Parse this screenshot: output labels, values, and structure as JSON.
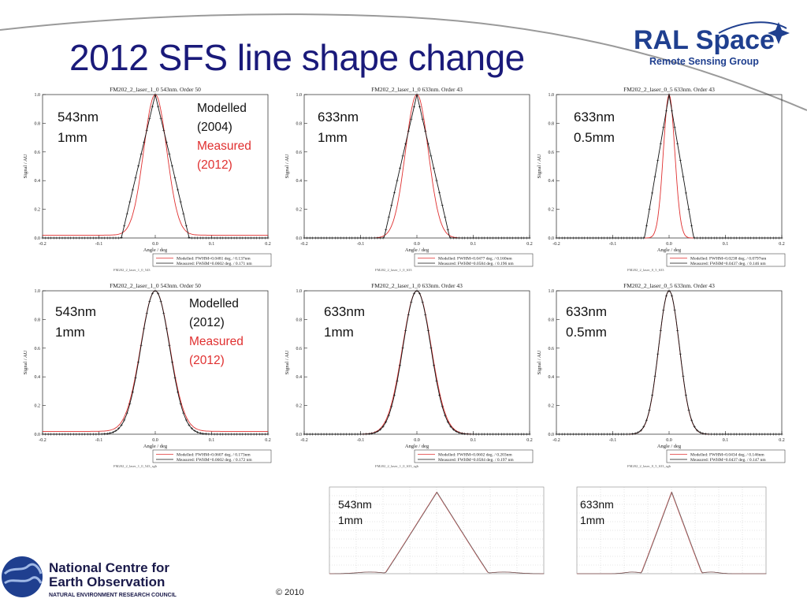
{
  "slide": {
    "title": "2012 SFS line shape change",
    "copyright": "© 2010"
  },
  "logos": {
    "ral_main": "RAL Space",
    "ral_sub": "Remote Sensing Group",
    "noc_line1": "National Centre for",
    "noc_line2": "Earth Observation",
    "noc_line3": "NATURAL ENVIRONMENT RESEARCH COUNCIL"
  },
  "colors": {
    "title": "#1a1a7a",
    "modelled": "#e03030",
    "measured": "#111111",
    "ral_blue": "#1f3f8f"
  },
  "legend_row1": {
    "l1": "Modelled",
    "l2": "(2004)",
    "l3": "Measured",
    "l4": "(2012)"
  },
  "legend_row2": {
    "l1": "Modelled",
    "l2": "(2012)",
    "l3": "Measured",
    "l4": "(2012)"
  },
  "annotations": [
    {
      "line1": "543nm",
      "line2": "1mm"
    },
    {
      "line1": "633nm",
      "line2": "1mm"
    },
    {
      "line1": "633nm",
      "line2": "0.5mm"
    },
    {
      "line1": "543nm",
      "line2": "1mm"
    },
    {
      "line1": "633nm",
      "line2": "1mm"
    },
    {
      "line1": "633nm",
      "line2": "0.5mm"
    },
    {
      "line1": "543nm",
      "line2": "1mm"
    },
    {
      "line1": "633nm",
      "line2": "1mm"
    }
  ],
  "chart_data": [
    {
      "type": "line",
      "title": "FM202_2_laser_1_0 543nm. Order 50",
      "xlabel": "Angle / deg",
      "ylabel": "Signal / AU",
      "xlim": [
        -0.2,
        0.2
      ],
      "ylim": [
        0,
        1
      ],
      "xticks": [
        "-0.2",
        "-0.1",
        "0.0",
        "0.1",
        "0.2"
      ],
      "yticks": [
        "0.0",
        "0.2",
        "0.4",
        "0.6",
        "0.8",
        "1.0"
      ],
      "legend": [
        "Modelled: FWHM=0.0481 deg. / 0.137nm",
        "Measured: FWHM=0.0602 deg. / 0.171 nm"
      ],
      "footer_left": "",
      "footer_mid": "FM202_2_laser_1_0_543",
      "series": [
        {
          "name": "Modelled",
          "center": 0.0,
          "fwhm": 0.0481,
          "shape": "gauss",
          "baseline": 0.02
        },
        {
          "name": "Measured",
          "center": 0.0,
          "fwhm": 0.0602,
          "shape": "tri",
          "baseline": 0.0
        }
      ]
    },
    {
      "type": "line",
      "title": "FM202_2_laser_1_0 633nm. Order 43",
      "xlabel": "Angle / deg",
      "ylabel": "Signal / AU",
      "xlim": [
        -0.2,
        0.2
      ],
      "ylim": [
        0,
        1
      ],
      "xticks": [
        "-0.2",
        "-0.1",
        "0.0",
        "0.1",
        "0.2"
      ],
      "yticks": [
        "0.0",
        "0.2",
        "0.4",
        "0.6",
        "0.8",
        "1.0"
      ],
      "legend": [
        "Modelled: FWHM=0.0477 deg. / 0.160nm",
        "Measured: FWHM=0.0584 deg. / 0.196 nm"
      ],
      "footer_left": "",
      "footer_mid": "FM202_2_laser_1_0_633",
      "series": [
        {
          "name": "Modelled",
          "center": 0.0,
          "fwhm": 0.0477,
          "shape": "gauss",
          "baseline": 0.0
        },
        {
          "name": "Measured",
          "center": 0.0,
          "fwhm": 0.0584,
          "shape": "tri",
          "baseline": 0.0
        }
      ]
    },
    {
      "type": "line",
      "title": "FM202_2_laser_0_5 633nm. Order 43",
      "xlabel": "Angle / deg",
      "ylabel": "Signal / AU",
      "xlim": [
        -0.2,
        0.2
      ],
      "ylim": [
        0,
        1
      ],
      "xticks": [
        "-0.2",
        "-0.1",
        "0.0",
        "0.1",
        "0.2"
      ],
      "yticks": [
        "0.0",
        "0.2",
        "0.4",
        "0.6",
        "0.8",
        "1.0"
      ],
      "legend": [
        "Modelled: FWHM=0.0238 deg. / 0.0797nm",
        "Measured: FWHM=0.0437 deg. / 0.146 nm"
      ],
      "footer_left": "",
      "footer_mid": "FM202_2_laser_0_5_633",
      "series": [
        {
          "name": "Modelled",
          "center": 0.0,
          "fwhm": 0.0238,
          "shape": "gauss",
          "baseline": 0.0
        },
        {
          "name": "Measured",
          "center": 0.0,
          "fwhm": 0.0437,
          "shape": "tri",
          "baseline": 0.0
        }
      ]
    },
    {
      "type": "line",
      "title": "FM202_2_laser_1_0 543nm. Order 50",
      "xlabel": "Angle / deg",
      "ylabel": "Signal / AU",
      "xlim": [
        -0.2,
        0.2
      ],
      "ylim": [
        0,
        1
      ],
      "xticks": [
        "-0.2",
        "-0.1",
        "0.0",
        "0.1",
        "0.2"
      ],
      "yticks": [
        "0.0",
        "0.2",
        "0.4",
        "0.6",
        "0.8",
        "1.0"
      ],
      "legend": [
        "Modelled: FWHM=0.0607 deg. / 0.173nm",
        "Measured: FWHM=0.0602 deg. / 0.172 nm"
      ],
      "footer_left": "",
      "footer_mid": "FM202_2_laser_1_0_543_sgb",
      "series": [
        {
          "name": "Modelled",
          "center": 0.0,
          "fwhm": 0.0607,
          "shape": "gauss",
          "baseline": 0.02
        },
        {
          "name": "Measured",
          "center": 0.0,
          "fwhm": 0.0602,
          "shape": "gauss",
          "baseline": 0.0
        }
      ]
    },
    {
      "type": "line",
      "title": "FM202_2_laser_1_0 633nm. Order 43",
      "xlabel": "Angle / deg",
      "ylabel": "Signal / AU",
      "xlim": [
        -0.2,
        0.2
      ],
      "ylim": [
        0,
        1
      ],
      "xticks": [
        "-0.2",
        "-0.1",
        "0.0",
        "0.1",
        "0.2"
      ],
      "yticks": [
        "0.0",
        "0.2",
        "0.4",
        "0.6",
        "0.8",
        "1.0"
      ],
      "legend": [
        "Modelled: FWHM=0.0602 deg. / 0.203nm",
        "Measured: FWHM=0.0584 deg. / 0.197 nm"
      ],
      "footer_left": "",
      "footer_mid": "FM202_2_laser_1_0_633_sgb",
      "series": [
        {
          "name": "Modelled",
          "center": 0.0,
          "fwhm": 0.0602,
          "shape": "gauss",
          "baseline": 0.0
        },
        {
          "name": "Measured",
          "center": 0.0,
          "fwhm": 0.0584,
          "shape": "gauss",
          "baseline": 0.0
        }
      ]
    },
    {
      "type": "line",
      "title": "FM202_2_laser_0_5 633nm. Order 43",
      "xlabel": "Angle / deg",
      "ylabel": "Signal / AU",
      "xlim": [
        -0.2,
        0.2
      ],
      "ylim": [
        0,
        1
      ],
      "xticks": [
        "-0.2",
        "-0.1",
        "0.0",
        "0.1",
        "0.2"
      ],
      "yticks": [
        "0.0",
        "0.2",
        "0.4",
        "0.6",
        "0.8",
        "1.0"
      ],
      "legend": [
        "Modelled: FWHM=0.0434 deg. / 0.146nm",
        "Measured: FWHM=0.0437 deg. / 0.147 nm"
      ],
      "footer_left": "",
      "footer_mid": "FM202_2_laser_0_5_633_sgb",
      "series": [
        {
          "name": "Modelled",
          "center": 0.0,
          "fwhm": 0.0434,
          "shape": "gauss",
          "baseline": 0.0
        },
        {
          "name": "Measured",
          "center": 0.0,
          "fwhm": 0.0437,
          "shape": "gauss",
          "baseline": 0.0
        }
      ]
    }
  ]
}
